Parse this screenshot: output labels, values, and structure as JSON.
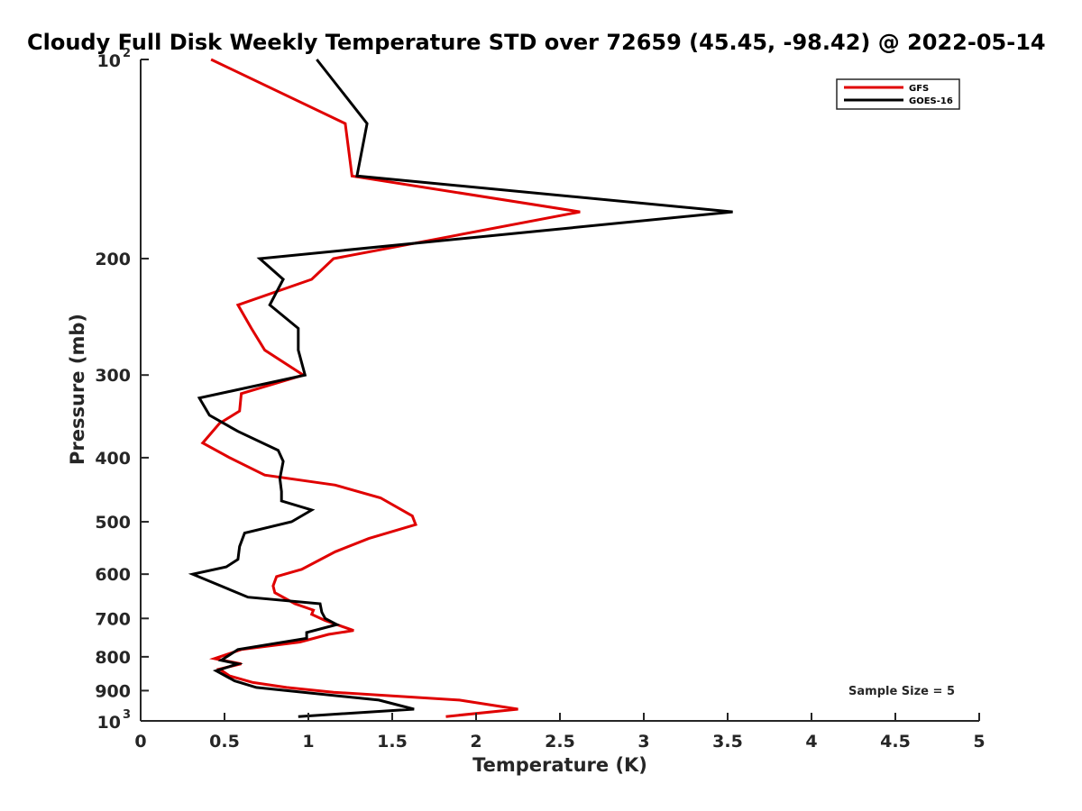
{
  "chart_data": {
    "type": "line",
    "title": "Cloudy Full Disk Weekly Temperature STD over 72659 (45.45, -98.42) @ 2022-05-14",
    "xlabel": "Temperature (K)",
    "ylabel": "Pressure (mb)",
    "xlim": [
      0,
      5
    ],
    "ylim": [
      1000,
      100
    ],
    "y_scale": "log",
    "y_reversed": true,
    "x_ticks": [
      "0",
      "0.5",
      "1",
      "1.5",
      "2",
      "2.5",
      "3",
      "3.5",
      "4",
      "4.5",
      "5"
    ],
    "y_ticks": [
      {
        "value": 100,
        "base": "10",
        "exp": "2"
      },
      {
        "value": 200,
        "label": "200"
      },
      {
        "value": 300,
        "label": "300"
      },
      {
        "value": 400,
        "label": "400"
      },
      {
        "value": 500,
        "label": "500"
      },
      {
        "value": 600,
        "label": "600"
      },
      {
        "value": 700,
        "label": "700"
      },
      {
        "value": 800,
        "label": "800"
      },
      {
        "value": 900,
        "label": "900"
      },
      {
        "value": 1000,
        "base": "10",
        "exp": "3"
      }
    ],
    "grid": false,
    "legend_position": "top-right",
    "annotation": "Sample Size = 5",
    "series": [
      {
        "name": "GFS",
        "color": "#e00000",
        "points": [
          [
            0.42,
            100
          ],
          [
            1.22,
            125
          ],
          [
            1.26,
            150
          ],
          [
            2.62,
            170
          ],
          [
            1.15,
            200
          ],
          [
            1.02,
            215
          ],
          [
            0.58,
            235
          ],
          [
            0.66,
            255
          ],
          [
            0.74,
            275
          ],
          [
            0.97,
            300
          ],
          [
            0.6,
            320
          ],
          [
            0.59,
            340
          ],
          [
            0.47,
            355
          ],
          [
            0.37,
            380
          ],
          [
            0.53,
            400
          ],
          [
            0.74,
            425
          ],
          [
            1.16,
            440
          ],
          [
            1.43,
            460
          ],
          [
            1.62,
            490
          ],
          [
            1.64,
            505
          ],
          [
            1.36,
            530
          ],
          [
            1.16,
            555
          ],
          [
            0.96,
            590
          ],
          [
            0.81,
            605
          ],
          [
            0.79,
            625
          ],
          [
            0.8,
            640
          ],
          [
            0.92,
            665
          ],
          [
            1.03,
            680
          ],
          [
            1.02,
            690
          ],
          [
            1.1,
            705
          ],
          [
            1.27,
            730
          ],
          [
            1.12,
            740
          ],
          [
            0.95,
            760
          ],
          [
            0.6,
            780
          ],
          [
            0.44,
            805
          ],
          [
            0.6,
            820
          ],
          [
            0.47,
            835
          ],
          [
            0.53,
            855
          ],
          [
            0.67,
            875
          ],
          [
            0.87,
            890
          ],
          [
            1.15,
            905
          ],
          [
            1.9,
            930
          ],
          [
            2.25,
            960
          ],
          [
            1.82,
            985
          ]
        ]
      },
      {
        "name": "GOES-16",
        "color": "#000000",
        "points": [
          [
            1.05,
            100
          ],
          [
            1.35,
            125
          ],
          [
            1.29,
            150
          ],
          [
            3.53,
            170
          ],
          [
            0.71,
            200
          ],
          [
            0.85,
            215
          ],
          [
            0.77,
            235
          ],
          [
            0.94,
            255
          ],
          [
            0.94,
            275
          ],
          [
            0.98,
            300
          ],
          [
            0.35,
            325
          ],
          [
            0.41,
            345
          ],
          [
            0.58,
            365
          ],
          [
            0.82,
            390
          ],
          [
            0.85,
            405
          ],
          [
            0.83,
            430
          ],
          [
            0.84,
            450
          ],
          [
            0.84,
            465
          ],
          [
            1.02,
            480
          ],
          [
            0.9,
            500
          ],
          [
            0.62,
            520
          ],
          [
            0.59,
            545
          ],
          [
            0.58,
            570
          ],
          [
            0.51,
            585
          ],
          [
            0.31,
            600
          ],
          [
            0.64,
            650
          ],
          [
            1.07,
            665
          ],
          [
            1.08,
            685
          ],
          [
            1.1,
            700
          ],
          [
            1.17,
            715
          ],
          [
            0.99,
            735
          ],
          [
            0.99,
            750
          ],
          [
            0.58,
            780
          ],
          [
            0.48,
            810
          ],
          [
            0.58,
            820
          ],
          [
            0.45,
            840
          ],
          [
            0.56,
            870
          ],
          [
            0.69,
            890
          ],
          [
            1.42,
            930
          ],
          [
            1.63,
            960
          ],
          [
            0.94,
            985
          ]
        ]
      }
    ]
  }
}
